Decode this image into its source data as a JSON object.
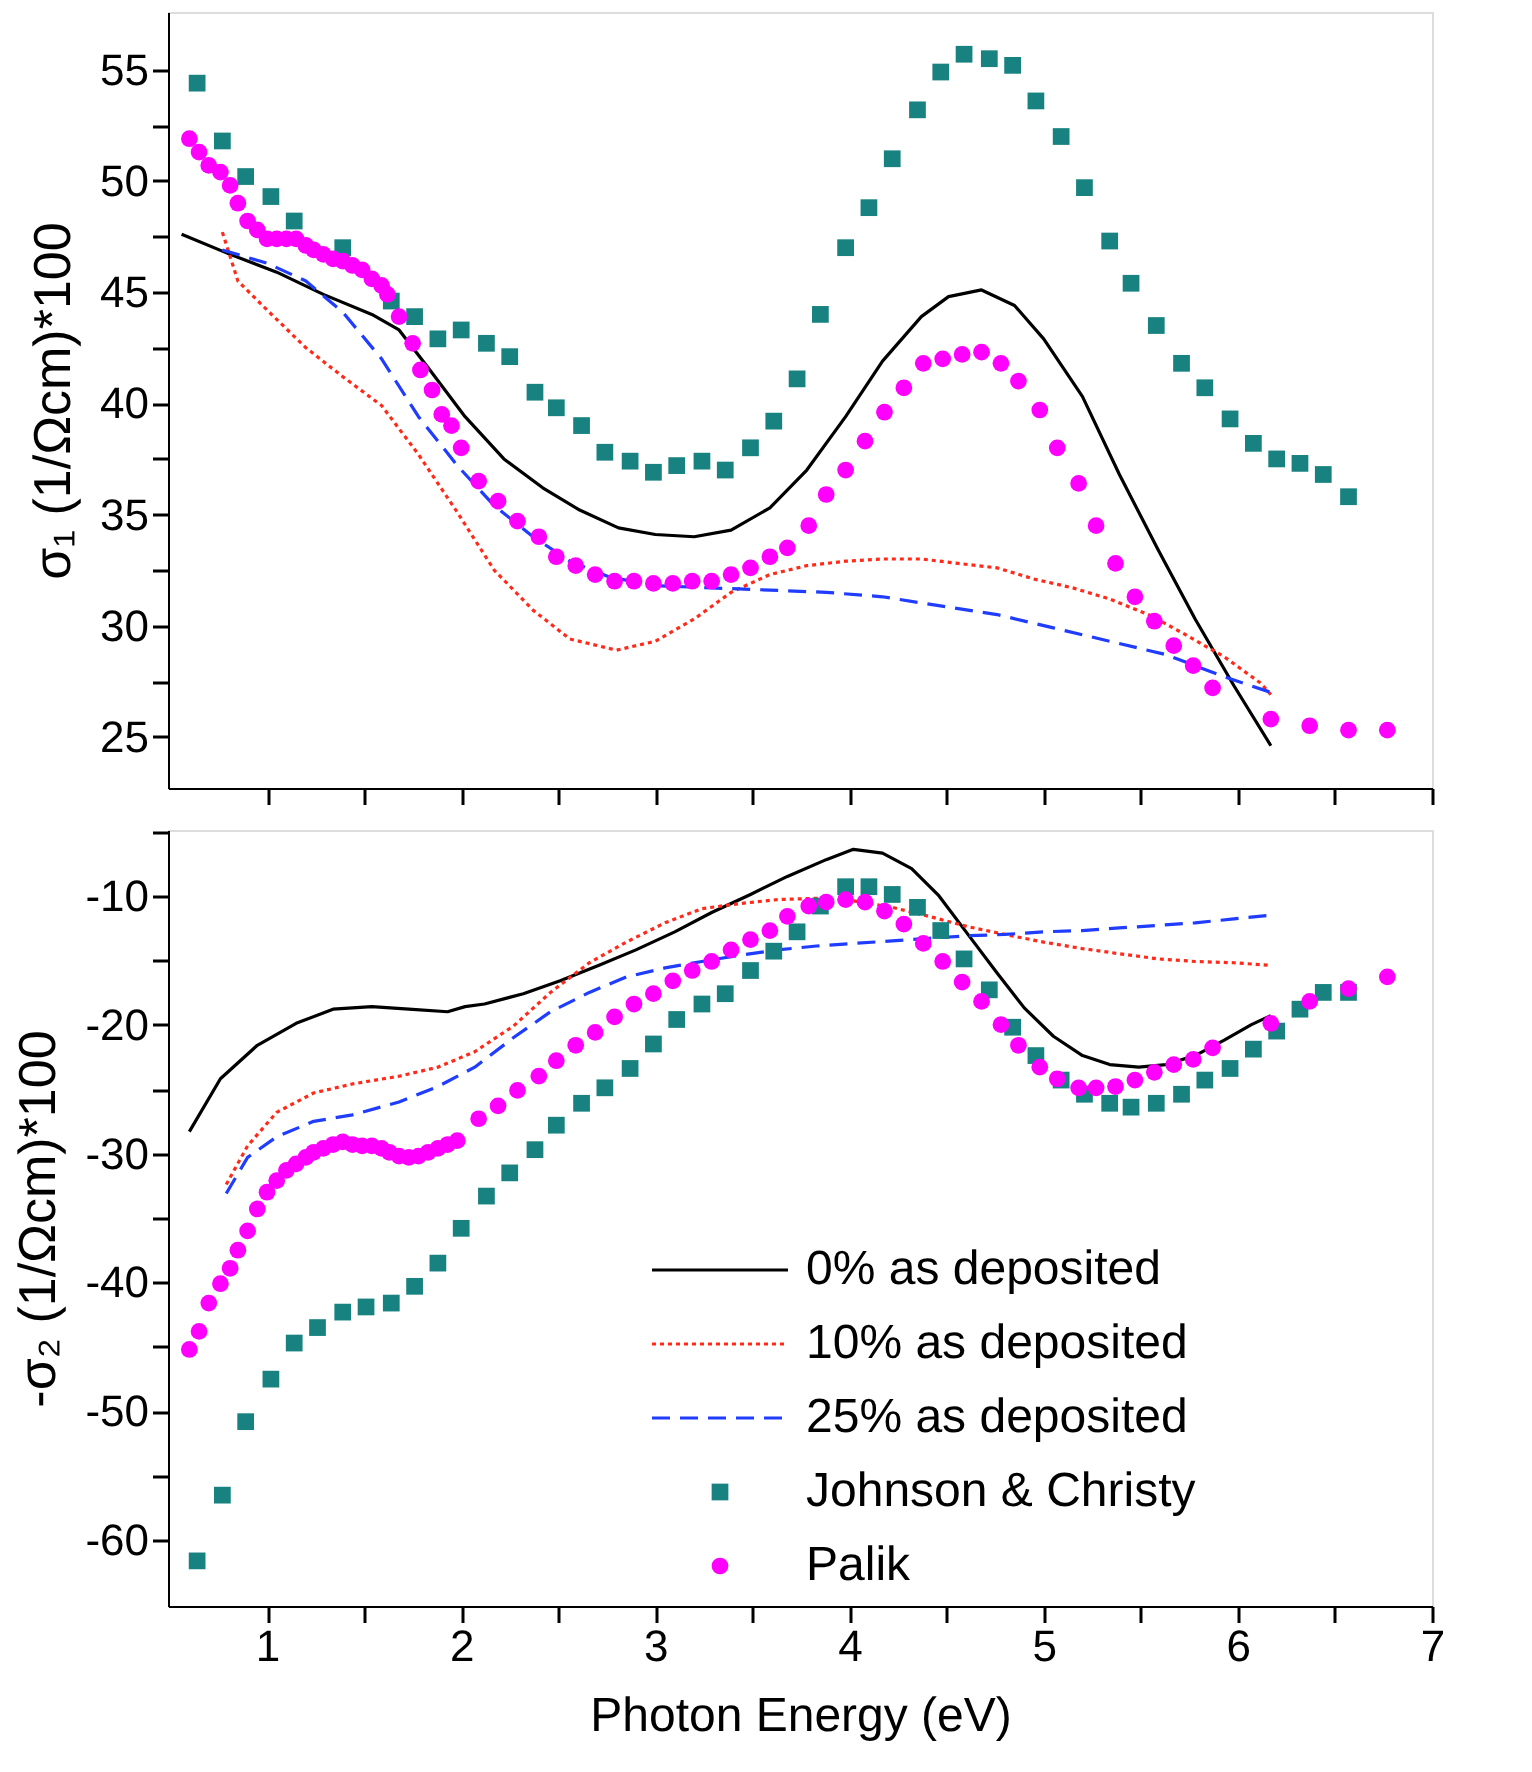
{
  "chart_data": [
    {
      "type": "line",
      "ylabel": "σ₁ (1/Ωcm)*100",
      "xlim": [
        0.49,
        7
      ],
      "ylim": [
        22.7,
        57.6
      ],
      "xticks": [
        1,
        {
          "value": 1.5,
          "label": null
        },
        2,
        {
          "value": 2.5,
          "label": null
        },
        3,
        {
          "value": 3.5,
          "label": null
        },
        4,
        {
          "value": 4.5,
          "label": null
        },
        5,
        {
          "value": 5.5,
          "label": null
        },
        6,
        {
          "value": 6.5,
          "label": null
        },
        7
      ],
      "yticks": [
        25,
        {
          "value": 27.5,
          "label": null
        },
        30,
        {
          "value": 32.5,
          "label": null
        },
        35,
        {
          "value": 37.5,
          "label": null
        },
        40,
        {
          "value": 42.5,
          "label": null
        },
        45,
        {
          "value": 47.5,
          "label": null
        },
        50,
        {
          "value": 52.5,
          "label": null
        },
        55
      ],
      "tick_labels": "y",
      "grid": false,
      "series": [
        {
          "type": "line",
          "line_style": "solid",
          "color": "#000000",
          "x": [
            0.56,
            0.81,
            1.05,
            1.29,
            1.54,
            1.68,
            1.83,
            2.02,
            2.22,
            2.42,
            2.61,
            2.81,
            3.0,
            3.2,
            3.39,
            3.59,
            3.78,
            3.98,
            4.17,
            4.37,
            4.51,
            4.68,
            4.85,
            5.0,
            5.2,
            5.39,
            5.59,
            5.78,
            5.98,
            6.17
          ],
          "values": [
            47.6,
            46.7,
            45.9,
            44.9,
            44.0,
            43.3,
            41.6,
            39.4,
            37.5,
            36.2,
            35.2,
            34.4,
            34.1,
            34.0,
            34.3,
            35.3,
            37.0,
            39.4,
            41.9,
            43.9,
            44.8,
            45.1,
            44.4,
            42.9,
            40.3,
            36.8,
            33.4,
            30.3,
            27.3,
            24.6
          ]
        },
        {
          "type": "line",
          "line_style": "dotted",
          "color": "#ff2a1a",
          "x": [
            0.77,
            0.85,
            1.0,
            1.2,
            1.39,
            1.59,
            1.78,
            1.98,
            2.17,
            2.37,
            2.56,
            2.8,
            3.0,
            3.2,
            3.39,
            3.59,
            3.78,
            3.98,
            4.17,
            4.37,
            4.56,
            4.76,
            4.95,
            5.15,
            5.34,
            5.54,
            5.73,
            5.93,
            6.12,
            6.17
          ],
          "values": [
            47.7,
            45.5,
            44.2,
            42.5,
            41.2,
            39.9,
            37.7,
            35.1,
            32.5,
            30.7,
            29.4,
            28.9,
            29.3,
            30.3,
            31.5,
            32.3,
            32.7,
            32.9,
            33.0,
            33.0,
            32.8,
            32.6,
            32.1,
            31.7,
            31.2,
            30.5,
            29.6,
            28.6,
            27.4,
            26.9
          ]
        },
        {
          "type": "line",
          "line_style": "dashed",
          "color": "#1f3cff",
          "x": [
            0.77,
            1.0,
            1.2,
            1.39,
            1.59,
            1.78,
            1.98,
            2.17,
            2.37,
            2.56,
            2.76,
            3.0,
            3.29,
            3.59,
            3.88,
            4.17,
            4.46,
            4.76,
            5.05,
            5.34,
            5.63,
            5.93,
            6.17
          ],
          "values": [
            46.9,
            46.3,
            45.5,
            44.1,
            42.0,
            39.4,
            37.2,
            35.4,
            34.0,
            32.9,
            32.2,
            31.8,
            31.7,
            31.6,
            31.5,
            31.3,
            30.9,
            30.5,
            29.9,
            29.3,
            28.7,
            27.7,
            27.0
          ]
        },
        {
          "type": "scatter",
          "marker": "square",
          "color": "#178280",
          "x": [
            0.64,
            0.77,
            0.89,
            1.02,
            1.14,
            1.39,
            1.64,
            1.76,
            1.88,
            2.0,
            2.13,
            2.25,
            2.38,
            2.49,
            2.62,
            2.74,
            2.87,
            2.99,
            3.11,
            3.24,
            3.36,
            3.49,
            3.61,
            3.73,
            3.85,
            3.98,
            4.1,
            4.22,
            4.35,
            4.47,
            4.59,
            4.72,
            4.84,
            4.96,
            5.09,
            5.21,
            5.34,
            5.45,
            5.58,
            5.71,
            5.83,
            5.96,
            6.08,
            6.2,
            6.32,
            6.44,
            6.57
          ],
          "values": [
            54.4,
            51.8,
            50.2,
            49.3,
            48.2,
            47.0,
            44.6,
            43.9,
            42.9,
            43.3,
            42.7,
            42.1,
            40.5,
            39.8,
            39.0,
            37.8,
            37.4,
            36.9,
            37.2,
            37.4,
            37.0,
            38.0,
            39.2,
            41.1,
            44.0,
            47.0,
            48.8,
            51.0,
            53.2,
            54.9,
            55.7,
            55.5,
            55.2,
            53.6,
            52.0,
            49.7,
            47.3,
            45.4,
            43.5,
            41.8,
            40.7,
            39.3,
            38.2,
            37.5,
            37.3,
            36.8,
            35.8
          ]
        },
        {
          "type": "scatter",
          "marker": "circle",
          "color": "#ff00ff",
          "x": [
            0.6,
            0.65,
            0.7,
            0.76,
            0.81,
            0.85,
            0.9,
            0.95,
            1.0,
            1.05,
            1.1,
            1.15,
            1.2,
            1.24,
            1.29,
            1.34,
            1.39,
            1.44,
            1.49,
            1.54,
            1.59,
            1.62,
            1.68,
            1.75,
            1.79,
            1.85,
            1.9,
            1.95,
            2.0,
            2.09,
            2.19,
            2.29,
            2.4,
            2.49,
            2.59,
            2.69,
            2.79,
            2.89,
            2.99,
            3.09,
            3.19,
            3.29,
            3.39,
            3.49,
            3.59,
            3.68,
            3.79,
            3.88,
            3.98,
            4.08,
            4.18,
            4.28,
            4.38,
            4.48,
            4.58,
            4.68,
            4.78,
            4.87,
            4.98,
            5.07,
            5.18,
            5.27,
            5.37,
            5.47,
            5.57,
            5.67,
            5.77,
            5.87,
            6.17,
            6.37,
            6.57,
            6.77
          ],
          "values": [
            51.9,
            51.3,
            50.7,
            50.4,
            49.8,
            49.0,
            48.2,
            47.8,
            47.4,
            47.4,
            47.4,
            47.4,
            47.1,
            46.9,
            46.7,
            46.5,
            46.4,
            46.2,
            46.0,
            45.6,
            45.3,
            44.9,
            43.9,
            42.7,
            41.5,
            40.6,
            39.5,
            39.0,
            38.0,
            36.5,
            35.6,
            34.7,
            34.0,
            33.1,
            32.7,
            32.3,
            32.0,
            32.0,
            31.9,
            31.9,
            32.0,
            32.0,
            32.3,
            32.6,
            33.1,
            33.5,
            34.5,
            35.9,
            37.0,
            38.3,
            39.6,
            40.7,
            41.8,
            42.0,
            42.2,
            42.3,
            41.8,
            41.0,
            39.7,
            38.0,
            36.4,
            34.5,
            32.8,
            31.3,
            30.2,
            29.1,
            28.2,
            27.2,
            25.8,
            25.5,
            25.3,
            25.3
          ]
        }
      ]
    },
    {
      "type": "line",
      "ylabel": "-σ₂ (1/Ωcm)*100",
      "xlabel": "Photon Energy (eV)",
      "xlim": [
        0.49,
        7
      ],
      "ylim": [
        -65.1,
        -4.9
      ],
      "xticks": [
        1,
        {
          "value": 1.5,
          "label": null
        },
        2,
        {
          "value": 2.5,
          "label": null
        },
        3,
        {
          "value": 3.5,
          "label": null
        },
        4,
        {
          "value": 4.5,
          "label": null
        },
        5,
        {
          "value": 5.5,
          "label": null
        },
        6,
        {
          "value": 6.5,
          "label": null
        },
        7
      ],
      "yticks": [
        -60,
        {
          "value": -55,
          "label": null
        },
        -50,
        {
          "value": -45,
          "label": null
        },
        -40,
        {
          "value": -35,
          "label": null
        },
        -30,
        {
          "value": -25,
          "label": null
        },
        -20,
        {
          "value": -15,
          "label": null
        },
        -10,
        {
          "value": -5,
          "label": null
        }
      ],
      "grid": false,
      "legend": "bottom right",
      "series": [
        {
          "name": "0% as deposited",
          "type": "line",
          "line_style": "solid",
          "color": "#000000",
          "x": [
            0.6,
            0.76,
            0.95,
            1.15,
            1.34,
            1.54,
            1.73,
            1.93,
            2.02,
            2.12,
            2.32,
            2.51,
            2.71,
            2.9,
            3.1,
            3.29,
            3.49,
            3.68,
            3.88,
            4.02,
            4.17,
            4.32,
            4.46,
            4.61,
            4.76,
            4.9,
            5.05,
            5.2,
            5.34,
            5.49,
            5.63,
            5.78,
            5.93,
            6.07,
            6.17
          ],
          "values": [
            -28.3,
            -24.2,
            -21.6,
            -19.9,
            -18.8,
            -18.6,
            -18.8,
            -19.0,
            -18.6,
            -18.4,
            -17.6,
            -16.6,
            -15.4,
            -14.2,
            -12.8,
            -11.3,
            -9.9,
            -8.5,
            -7.2,
            -6.4,
            -6.7,
            -7.9,
            -10.0,
            -13.0,
            -16.0,
            -18.7,
            -20.9,
            -22.4,
            -23.1,
            -23.3,
            -23.1,
            -22.4,
            -21.2,
            -20.0,
            -19.3
          ]
        },
        {
          "name": "10% as deposited",
          "type": "line",
          "line_style": "dotted",
          "color": "#ff2a1a",
          "x": [
            0.79,
            0.9,
            1.05,
            1.24,
            1.44,
            1.68,
            1.88,
            2.07,
            2.27,
            2.46,
            2.66,
            2.85,
            3.05,
            3.24,
            3.44,
            3.63,
            3.83,
            4.02,
            4.22,
            4.41,
            4.61,
            4.8,
            5.0,
            5.2,
            5.39,
            5.59,
            5.78,
            5.98,
            6.17
          ],
          "values": [
            -32.4,
            -29.4,
            -26.8,
            -25.3,
            -24.6,
            -24.0,
            -23.3,
            -22.1,
            -20.1,
            -17.5,
            -15.2,
            -13.6,
            -12.1,
            -11.0,
            -10.6,
            -10.3,
            -10.2,
            -10.4,
            -10.9,
            -11.6,
            -12.4,
            -13.0,
            -13.6,
            -14.1,
            -14.5,
            -14.9,
            -15.1,
            -15.2,
            -15.4
          ]
        },
        {
          "name": "25% as deposited",
          "type": "line",
          "line_style": "dashed",
          "color": "#1f3cff",
          "x": [
            0.79,
            0.9,
            1.05,
            1.24,
            1.44,
            1.68,
            1.88,
            2.07,
            2.27,
            2.46,
            2.66,
            2.85,
            3.05,
            3.24,
            3.44,
            3.63,
            3.83,
            4.02,
            4.22,
            4.41,
            4.61,
            4.8,
            5.0,
            5.2,
            5.39,
            5.59,
            5.78,
            5.98,
            6.17
          ],
          "values": [
            -33.1,
            -30.3,
            -28.7,
            -27.5,
            -27.0,
            -26.0,
            -24.8,
            -23.3,
            -21.0,
            -19.0,
            -17.5,
            -16.3,
            -15.6,
            -15.1,
            -14.6,
            -14.2,
            -13.9,
            -13.7,
            -13.5,
            -13.3,
            -13.1,
            -13.0,
            -12.8,
            -12.7,
            -12.5,
            -12.3,
            -12.1,
            -11.8,
            -11.5
          ]
        },
        {
          "name": "Johnson & Christy",
          "type": "scatter",
          "marker": "square",
          "color": "#178280",
          "x": [
            0.64,
            0.77,
            0.89,
            1.02,
            1.14,
            1.26,
            1.39,
            1.51,
            1.64,
            1.76,
            1.88,
            2.0,
            2.13,
            2.25,
            2.38,
            2.49,
            2.62,
            2.74,
            2.87,
            2.99,
            3.11,
            3.24,
            3.36,
            3.49,
            3.61,
            3.73,
            3.85,
            3.98,
            4.1,
            4.22,
            4.35,
            4.47,
            4.59,
            4.72,
            4.84,
            4.96,
            5.09,
            5.21,
            5.34,
            5.45,
            5.58,
            5.71,
            5.83,
            5.96,
            6.08,
            6.2,
            6.32,
            6.44,
            6.57
          ],
          "values": [
            -61.6,
            -56.5,
            -50.8,
            -47.5,
            -44.7,
            -43.5,
            -42.3,
            -41.9,
            -41.6,
            -40.3,
            -38.5,
            -35.8,
            -33.3,
            -31.5,
            -29.7,
            -27.8,
            -26.1,
            -24.9,
            -23.4,
            -21.5,
            -19.6,
            -18.4,
            -17.6,
            -15.8,
            -14.3,
            -12.8,
            -10.8,
            -9.3,
            -9.3,
            -9.9,
            -10.9,
            -12.7,
            -14.9,
            -17.3,
            -20.2,
            -22.4,
            -24.3,
            -25.4,
            -26.1,
            -26.4,
            -26.1,
            -25.4,
            -24.3,
            -23.4,
            -21.9,
            -20.5,
            -18.8,
            -17.5,
            -17.5
          ]
        },
        {
          "name": "Palik",
          "type": "scatter",
          "marker": "circle",
          "color": "#ff00ff",
          "x": [
            0.6,
            0.65,
            0.7,
            0.76,
            0.81,
            0.85,
            0.9,
            0.95,
            1.0,
            1.05,
            1.1,
            1.15,
            1.2,
            1.24,
            1.29,
            1.34,
            1.39,
            1.44,
            1.49,
            1.54,
            1.59,
            1.63,
            1.68,
            1.73,
            1.78,
            1.83,
            1.88,
            1.93,
            1.98,
            2.09,
            2.19,
            2.29,
            2.4,
            2.49,
            2.59,
            2.69,
            2.79,
            2.89,
            2.99,
            3.09,
            3.19,
            3.29,
            3.39,
            3.49,
            3.59,
            3.68,
            3.79,
            3.88,
            3.98,
            4.08,
            4.18,
            4.28,
            4.38,
            4.48,
            4.58,
            4.68,
            4.78,
            4.87,
            4.98,
            5.07,
            5.18,
            5.27,
            5.37,
            5.47,
            5.57,
            5.67,
            5.77,
            5.87,
            6.17,
            6.37,
            6.57,
            6.77
          ],
          "values": [
            -45.2,
            -43.8,
            -41.6,
            -40.1,
            -38.9,
            -37.5,
            -36.0,
            -34.3,
            -33.0,
            -32.1,
            -31.3,
            -30.8,
            -30.3,
            -29.9,
            -29.6,
            -29.3,
            -29.1,
            -29.3,
            -29.4,
            -29.4,
            -29.6,
            -29.9,
            -30.2,
            -30.3,
            -30.2,
            -29.9,
            -29.6,
            -29.3,
            -29.0,
            -27.3,
            -26.3,
            -25.1,
            -24.0,
            -22.8,
            -21.6,
            -20.6,
            -19.4,
            -18.4,
            -17.6,
            -16.6,
            -15.8,
            -15.1,
            -14.2,
            -13.4,
            -12.7,
            -11.6,
            -10.8,
            -10.5,
            -10.3,
            -10.5,
            -11.2,
            -12.2,
            -13.7,
            -15.1,
            -16.7,
            -18.2,
            -20.0,
            -21.6,
            -23.3,
            -24.2,
            -24.9,
            -24.9,
            -24.8,
            -24.3,
            -23.7,
            -23.1,
            -22.7,
            -21.8,
            -19.9,
            -18.2,
            -17.2,
            -16.3
          ]
        }
      ]
    }
  ]
}
